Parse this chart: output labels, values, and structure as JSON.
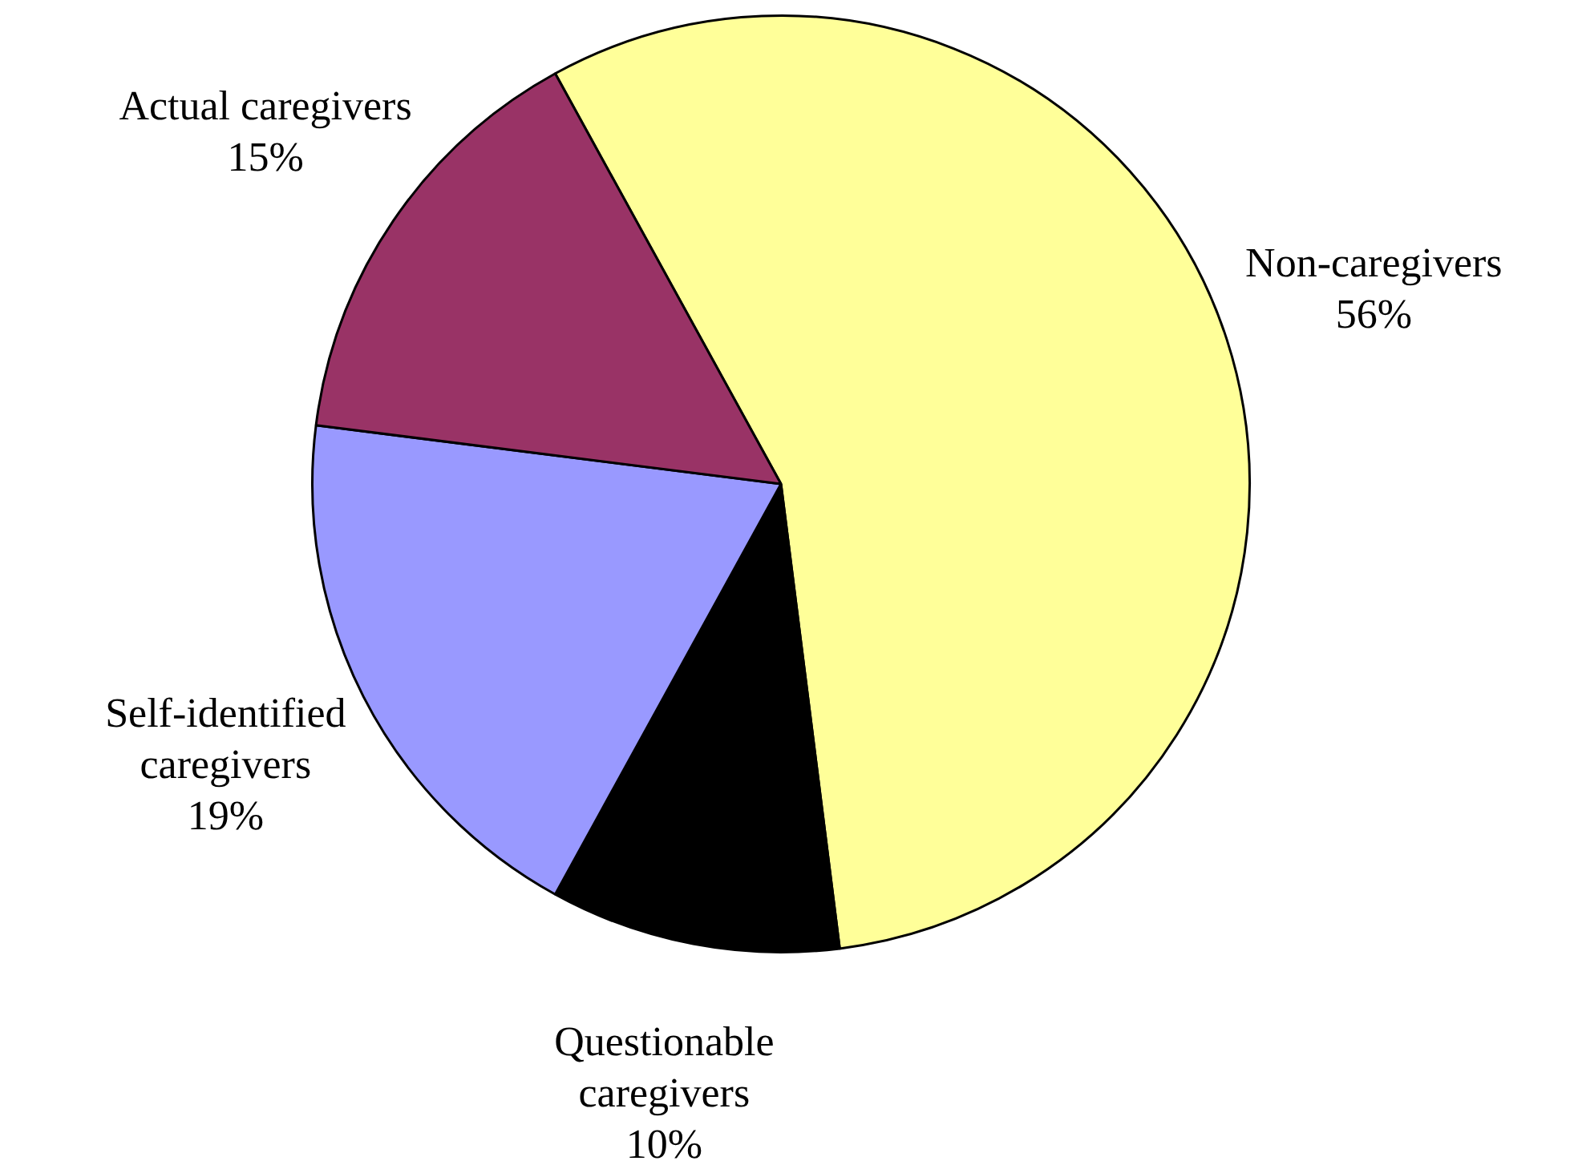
{
  "chart_data": {
    "type": "pie",
    "categories": [
      "Non-caregivers",
      "Questionable caregivers",
      "Self-identified caregivers",
      "Actual caregivers"
    ],
    "values": [
      56,
      10,
      19,
      15
    ],
    "colors": [
      "#ffff99",
      "#000000",
      "#9999ff",
      "#993366"
    ],
    "value_labels": [
      "56%",
      "10%",
      "19%",
      "15%"
    ],
    "legend": false
  }
}
